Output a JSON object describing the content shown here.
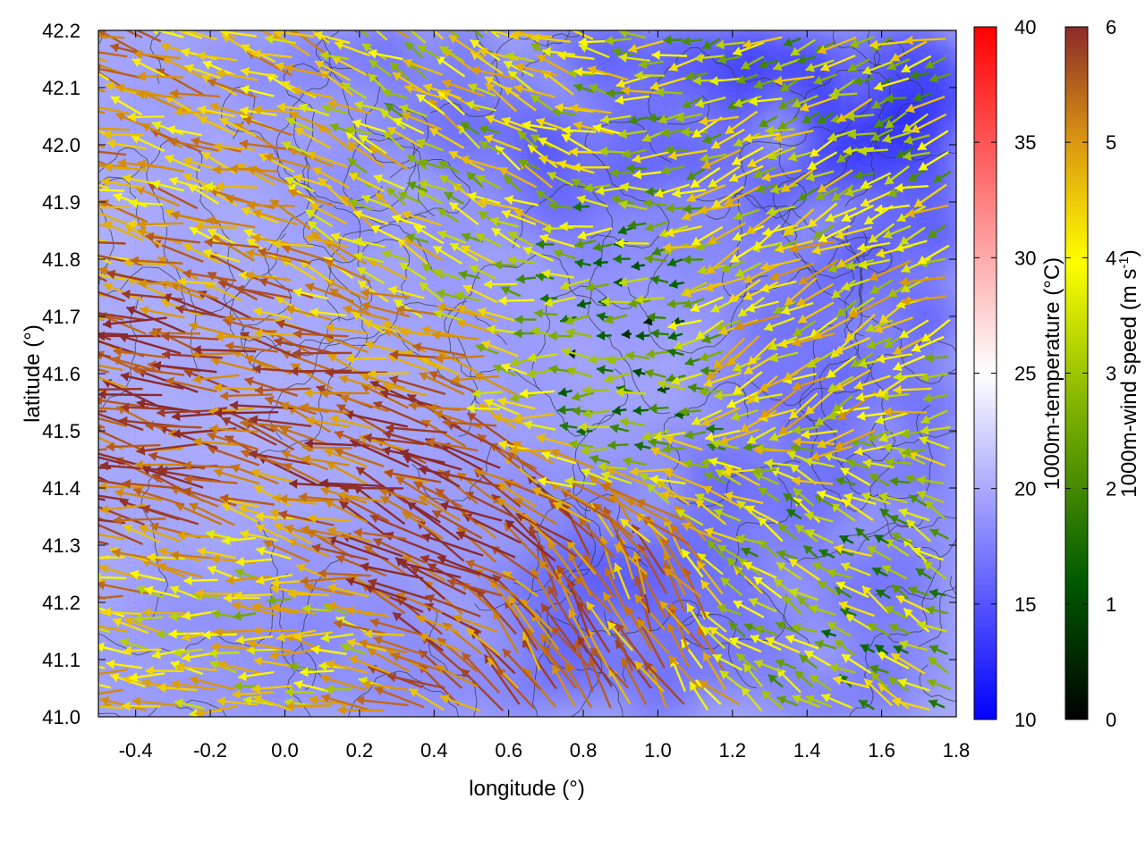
{
  "chart_data": {
    "type": "heatmap",
    "subtype": "vector-field-over-temperature-map-with-contours",
    "xlabel": "longitude (°)",
    "ylabel": "latitude (°)",
    "xlim": [
      -0.5,
      1.8
    ],
    "ylim": [
      41.0,
      42.2
    ],
    "x_ticks": [
      "-0.4",
      "-0.2",
      "0.0",
      "0.2",
      "0.4",
      "0.6",
      "0.8",
      "1.0",
      "1.2",
      "1.4",
      "1.6",
      "1.8"
    ],
    "y_ticks": [
      "41.0",
      "41.1",
      "41.2",
      "41.3",
      "41.4",
      "41.5",
      "41.6",
      "41.7",
      "41.8",
      "41.9",
      "42.0",
      "42.1",
      "42.2"
    ],
    "grid": true,
    "temperature_colorbar": {
      "label": "1000m-temperature (°C)",
      "range": [
        10,
        40
      ],
      "ticks": [
        "10",
        "15",
        "20",
        "25",
        "30",
        "35",
        "40"
      ],
      "colors": [
        "#0000ff",
        "#ffffff",
        "#ff0000"
      ]
    },
    "wind_colorbar": {
      "label_main": "1000m-wind speed (m s",
      "label_sup": "-1",
      "label_end": ")",
      "range": [
        0,
        6
      ],
      "ticks": [
        "0",
        "1",
        "2",
        "3",
        "4",
        "5",
        "6"
      ],
      "colors": [
        "#000000",
        "#006400",
        "#8cb400",
        "#ffff00",
        "#e0a000",
        "#b85a1e",
        "#8b2a2a"
      ]
    },
    "temperature_regions": [
      {
        "lon": -0.3,
        "lat": 41.6,
        "temp_c": 20
      },
      {
        "lon": 0.1,
        "lat": 41.5,
        "temp_c": 20
      },
      {
        "lon": 0.5,
        "lat": 41.7,
        "temp_c": 19
      },
      {
        "lon": 0.9,
        "lat": 41.6,
        "temp_c": 19
      },
      {
        "lon": 0.8,
        "lat": 42.05,
        "temp_c": 15
      },
      {
        "lon": 1.55,
        "lat": 42.15,
        "temp_c": 12
      },
      {
        "lon": 1.0,
        "lat": 41.3,
        "temp_c": 15
      },
      {
        "lon": 1.45,
        "lat": 41.55,
        "temp_c": 16
      },
      {
        "lon": 1.6,
        "lat": 41.2,
        "temp_c": 17
      },
      {
        "lon": 0.2,
        "lat": 41.15,
        "temp_c": 18
      }
    ],
    "wind_regions": [
      {
        "lon": -0.3,
        "lat": 41.55,
        "speed_ms": 5.2,
        "dir_deg": 170
      },
      {
        "lon": 0.2,
        "lat": 41.45,
        "speed_ms": 5.0,
        "dir_deg": 165
      },
      {
        "lon": 0.45,
        "lat": 41.3,
        "speed_ms": 5.5,
        "dir_deg": 155
      },
      {
        "lon": -0.2,
        "lat": 41.95,
        "speed_ms": 4.0,
        "dir_deg": 165
      },
      {
        "lon": 0.4,
        "lat": 41.95,
        "speed_ms": 2.8,
        "dir_deg": 150
      },
      {
        "lon": 0.95,
        "lat": 41.65,
        "speed_ms": 1.5,
        "dir_deg": 180
      },
      {
        "lon": 0.9,
        "lat": 41.15,
        "speed_ms": 4.5,
        "dir_deg": 120
      },
      {
        "lon": 1.45,
        "lat": 41.2,
        "speed_ms": 2.2,
        "dir_deg": 150
      },
      {
        "lon": 1.35,
        "lat": 41.7,
        "speed_ms": 3.2,
        "dir_deg": 210
      },
      {
        "lon": 1.55,
        "lat": 42.1,
        "speed_ms": 2.5,
        "dir_deg": 200
      },
      {
        "lon": 0.0,
        "lat": 41.15,
        "speed_ms": 3.0,
        "dir_deg": 175
      }
    ]
  }
}
